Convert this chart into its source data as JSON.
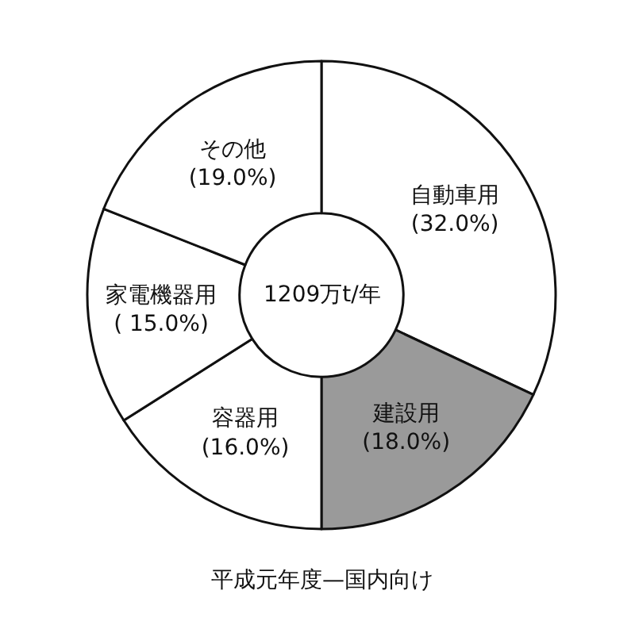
{
  "chart_data": {
    "type": "donut",
    "title": "平成元年度—国内向け",
    "categories": [
      "自動車用",
      "建設用",
      "容器用",
      "家電機器用",
      "その他"
    ],
    "values": [
      32.0,
      18.0,
      16.0,
      15.0,
      19.0
    ],
    "value_labels": [
      "(32.0%)",
      "(18.0%)",
      "(16.0%)",
      "( 15.0%)",
      "(19.0%)"
    ],
    "colors": [
      "#ffffff",
      "#9a9a9a",
      "#ffffff",
      "#ffffff",
      "#ffffff"
    ],
    "annotations": [
      "1209万t/年"
    ],
    "legend": false
  }
}
